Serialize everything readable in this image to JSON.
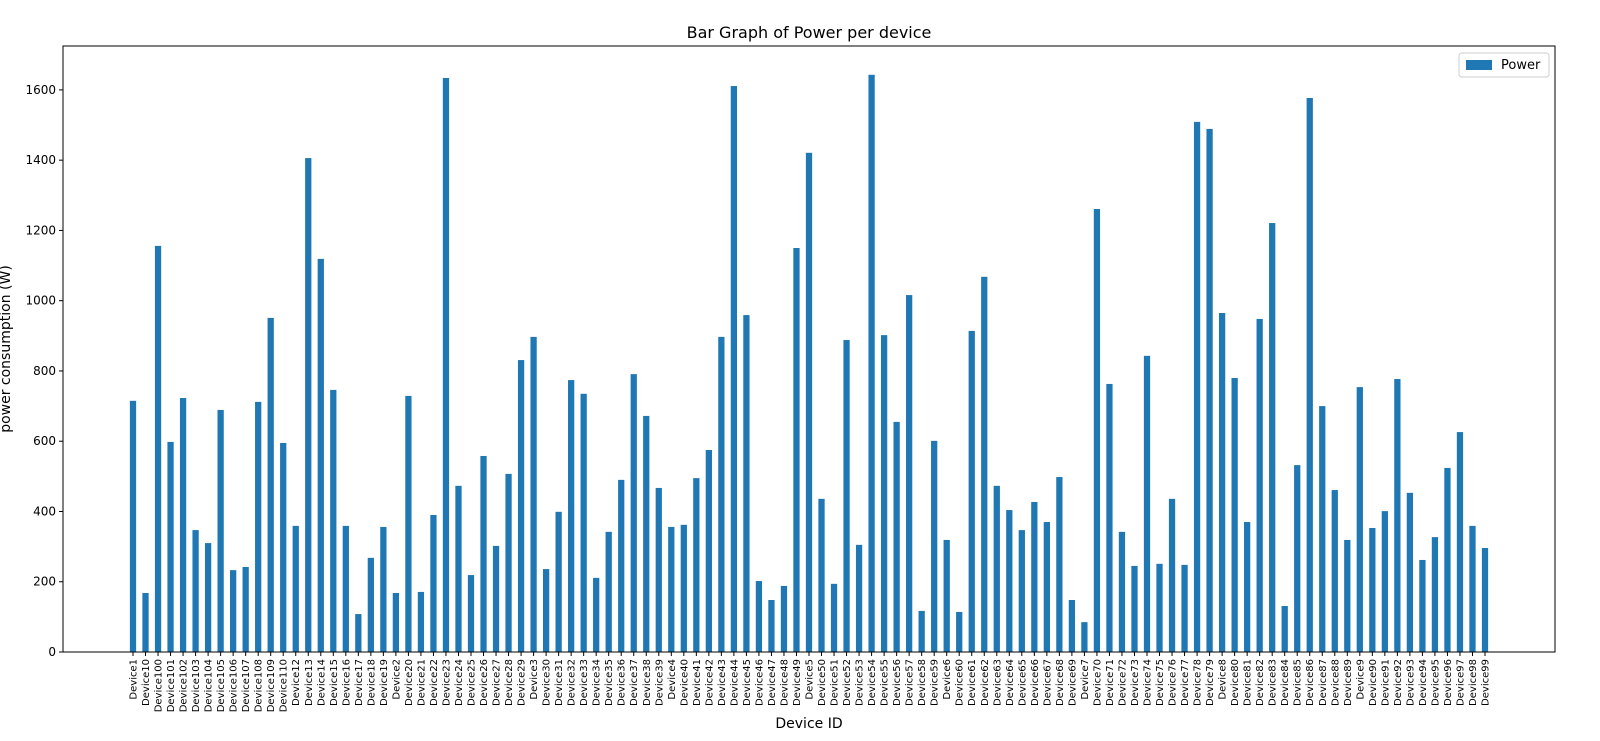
{
  "chart_data": {
    "type": "bar",
    "title": "Bar Graph of Power per device",
    "x_label": "Device ID",
    "y_label": "power consumption (W)",
    "categories": [
      "Device1",
      "Device10",
      "Device100",
      "Device101",
      "Device102",
      "Device103",
      "Device104",
      "Device105",
      "Device106",
      "Device107",
      "Device108",
      "Device109",
      "Device110",
      "Device12",
      "Device13",
      "Device14",
      "Device15",
      "Device16",
      "Device17",
      "Device18",
      "Device19",
      "Device2",
      "Device20",
      "Device21",
      "Device22",
      "Device23",
      "Device24",
      "Device25",
      "Device26",
      "Device27",
      "Device28",
      "Device29",
      "Device3",
      "Device30",
      "Device31",
      "Device32",
      "Device33",
      "Device34",
      "Device35",
      "Device36",
      "Device37",
      "Device38",
      "Device39",
      "Device4",
      "Device40",
      "Device41",
      "Device42",
      "Device43",
      "Device44",
      "Device45",
      "Device46",
      "Device47",
      "Device48",
      "Device49",
      "Device5",
      "Device50",
      "Device51",
      "Device52",
      "Device53",
      "Device54",
      "Device55",
      "Device56",
      "Device57",
      "Device58",
      "Device59",
      "Device6",
      "Device60",
      "Device61",
      "Device62",
      "Device63",
      "Device64",
      "Device65",
      "Device66",
      "Device67",
      "Device68",
      "Device69",
      "Device7",
      "Device70",
      "Device71",
      "Device72",
      "Device73",
      "Device74",
      "Device75",
      "Device76",
      "Device77",
      "Device78",
      "Device79",
      "Device8",
      "Device80",
      "Device81",
      "Device82",
      "Device83",
      "Device84",
      "Device85",
      "Device86",
      "Device87",
      "Device88",
      "Device89",
      "Device9",
      "Device90",
      "Device91",
      "Device92",
      "Device93",
      "Device94",
      "Device95",
      "Device96",
      "Device97",
      "Device98",
      "Device99"
    ],
    "series": [
      {
        "name": "Power",
        "color": "#1f77b4",
        "values": [
          715,
          168,
          1156,
          598,
          723,
          347,
          310,
          689,
          233,
          242,
          712,
          951,
          595,
          359,
          1406,
          1119,
          746,
          359,
          108,
          268,
          356,
          168,
          729,
          171,
          390,
          1634,
          473,
          219,
          558,
          302,
          507,
          831,
          897,
          236,
          399,
          774,
          735,
          211,
          342,
          490,
          791,
          672,
          467,
          356,
          362,
          495,
          575,
          897,
          1611,
          959,
          202,
          148,
          188,
          1150,
          1421,
          436,
          194,
          888,
          305,
          1643,
          902,
          655,
          1016,
          117,
          601,
          319,
          114,
          914,
          1068,
          473,
          404,
          347,
          427,
          370,
          498,
          148,
          85,
          1261,
          763,
          342,
          245,
          843,
          251,
          436,
          248,
          1509,
          1489,
          965,
          780,
          370,
          948,
          1221,
          131,
          532,
          1577,
          700,
          461,
          319,
          754,
          353,
          401,
          777,
          453,
          262,
          327,
          524,
          626,
          359,
          296
        ]
      }
    ],
    "ylim": [
      0,
      1725
    ],
    "yticks": [
      0,
      200,
      400,
      600,
      800,
      1000,
      1200,
      1400,
      1600
    ],
    "grid": false,
    "legend": "upper right"
  }
}
